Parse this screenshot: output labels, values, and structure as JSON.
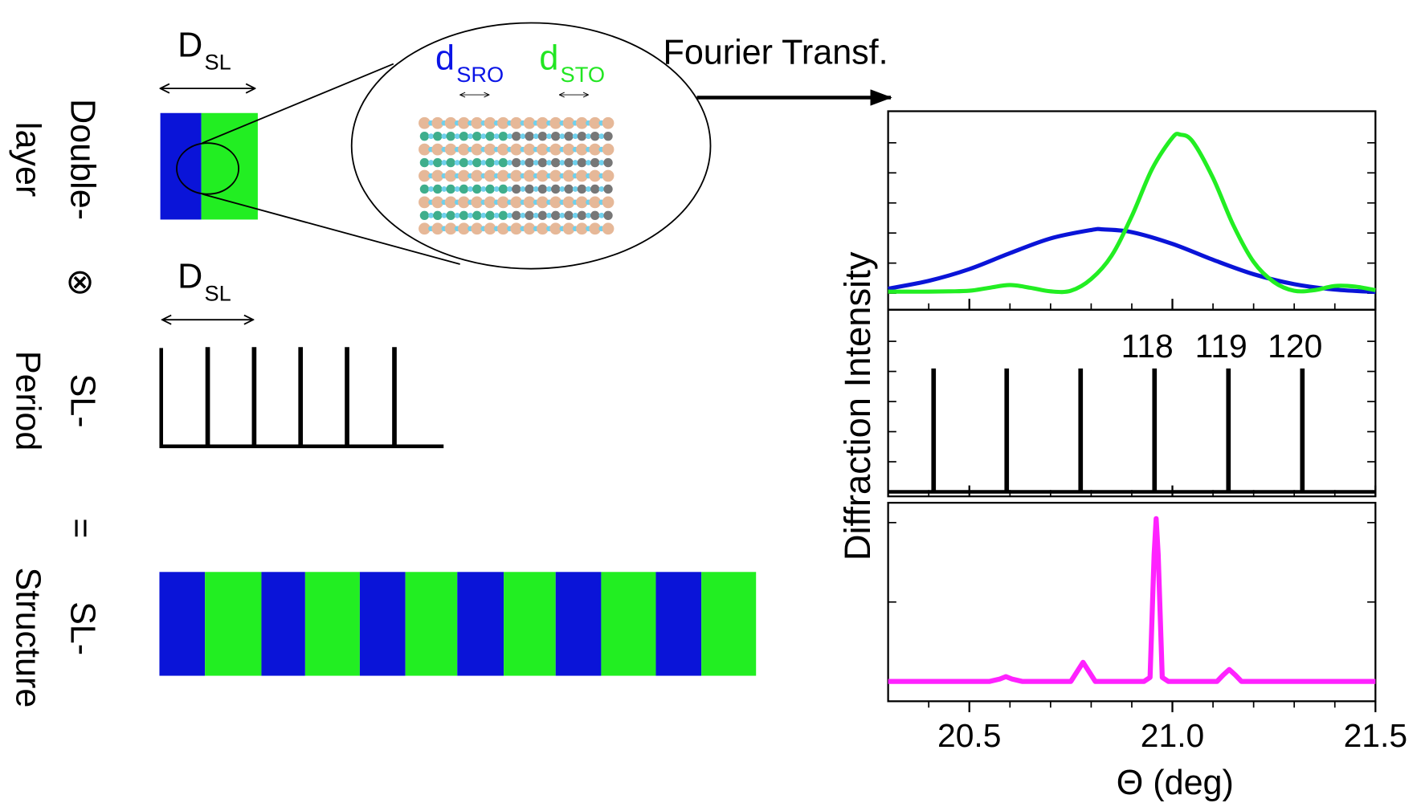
{
  "diagram": {
    "double_layer": {
      "label_lines": [
        "Double-",
        "layer"
      ],
      "period": {
        "symbol": "D",
        "subscript": "SL"
      }
    },
    "zoom": {
      "d_sro": {
        "symbol": "d",
        "subscript": "SRO"
      },
      "d_sto": {
        "symbol": "d",
        "subscript": "STO"
      }
    },
    "convolution": "⊗",
    "sl_period": {
      "label_lines": [
        "SL-",
        "Period"
      ],
      "period": {
        "symbol": "D",
        "subscript": "SL"
      }
    },
    "equals": "=",
    "sl_structure": {
      "label_lines": [
        "SL-",
        "Structure"
      ]
    },
    "transform": "Fourier Transf."
  },
  "chart_data": [
    {
      "type": "line",
      "ylabel": "Diffraction Intensity",
      "xlim": [
        20.3,
        21.5
      ],
      "xticks": [
        20.5,
        21,
        21.5
      ],
      "xminorticks": [
        20.4,
        20.6,
        20.7,
        20.8,
        20.9,
        21.1,
        21.2,
        21.3,
        21.4
      ],
      "ylim": [
        -0.55,
        6.05
      ],
      "yticks": [
        0,
        1,
        2,
        3,
        4,
        5
      ],
      "series": [
        {
          "color": "#0a14d8",
          "x": [
            20.3,
            20.4,
            20.5,
            20.6,
            20.7,
            20.8,
            20.83,
            20.9,
            21.0,
            21.1,
            21.2,
            21.3,
            21.4,
            21.5
          ],
          "values": [
            0.15,
            0.41,
            0.8,
            1.33,
            1.82,
            2.1,
            2.12,
            2.03,
            1.64,
            1.11,
            0.63,
            0.3,
            0.12,
            0.04
          ]
        },
        {
          "color": "#22ee22",
          "x": [
            20.3,
            20.35,
            20.4,
            20.45,
            20.5,
            20.55,
            20.6,
            20.65,
            20.7,
            20.75,
            20.8,
            20.85,
            20.9,
            20.95,
            21.0,
            21.02,
            21.05,
            21.1,
            21.15,
            21.2,
            21.25,
            21.3,
            21.35,
            21.4,
            21.45,
            21.5
          ],
          "values": [
            0.05,
            0.05,
            0.05,
            0.06,
            0.08,
            0.18,
            0.27,
            0.18,
            0.06,
            0.08,
            0.47,
            1.24,
            2.56,
            4.13,
            5.17,
            5.27,
            5.04,
            3.83,
            2.26,
            1.04,
            0.37,
            0.08,
            0.1,
            0.24,
            0.22,
            0.1
          ]
        }
      ]
    },
    {
      "type": "stem",
      "xlim": [
        20.3,
        21.5
      ],
      "xticks": [
        20.5,
        21,
        21.5
      ],
      "xminorticks": [
        20.4,
        20.6,
        20.7,
        20.8,
        20.9,
        21.1,
        21.2,
        21.3,
        21.4
      ],
      "ylim": [
        -0.15,
        6.05
      ],
      "yticks": [
        0,
        1,
        2,
        3,
        4,
        5
      ],
      "x": [
        20.412,
        20.592,
        20.774,
        20.956,
        21.138,
        21.32
      ],
      "peak_labels": [
        null,
        null,
        null,
        118,
        119,
        120
      ],
      "series": [
        {
          "color": "#000000",
          "values": [
            4.1,
            4.1,
            4.1,
            4.1,
            4.1,
            4.1
          ]
        }
      ]
    },
    {
      "type": "line",
      "xlabel": "Θ (deg)",
      "xlim": [
        20.3,
        21.5
      ],
      "xticks": [
        20.5,
        {
          "value": 21,
          "label": "21.0"
        },
        21.5
      ],
      "xminorticks": [
        20.4,
        20.6,
        20.7,
        20.8,
        20.9,
        21.1,
        21.2,
        21.3,
        21.4
      ],
      "ylim": [
        -0.25,
        2.25
      ],
      "yticks": [
        0,
        1,
        2
      ],
      "series": [
        {
          "color": "#ff22ff",
          "x": [
            20.3,
            20.55,
            20.575,
            20.59,
            20.605,
            20.63,
            20.75,
            20.765,
            20.78,
            20.795,
            20.81,
            20.93,
            20.945,
            20.955,
            20.96,
            20.965,
            20.975,
            20.99,
            21.11,
            21.125,
            21.14,
            21.155,
            21.17,
            21.5
          ],
          "values": [
            0,
            0,
            0.03,
            0.06,
            0.03,
            0,
            0,
            0.12,
            0.24,
            0.12,
            0,
            0,
            0.05,
            1.6,
            2.05,
            1.6,
            0.05,
            0,
            0,
            0.08,
            0.15,
            0.08,
            0,
            0
          ]
        }
      ]
    }
  ]
}
